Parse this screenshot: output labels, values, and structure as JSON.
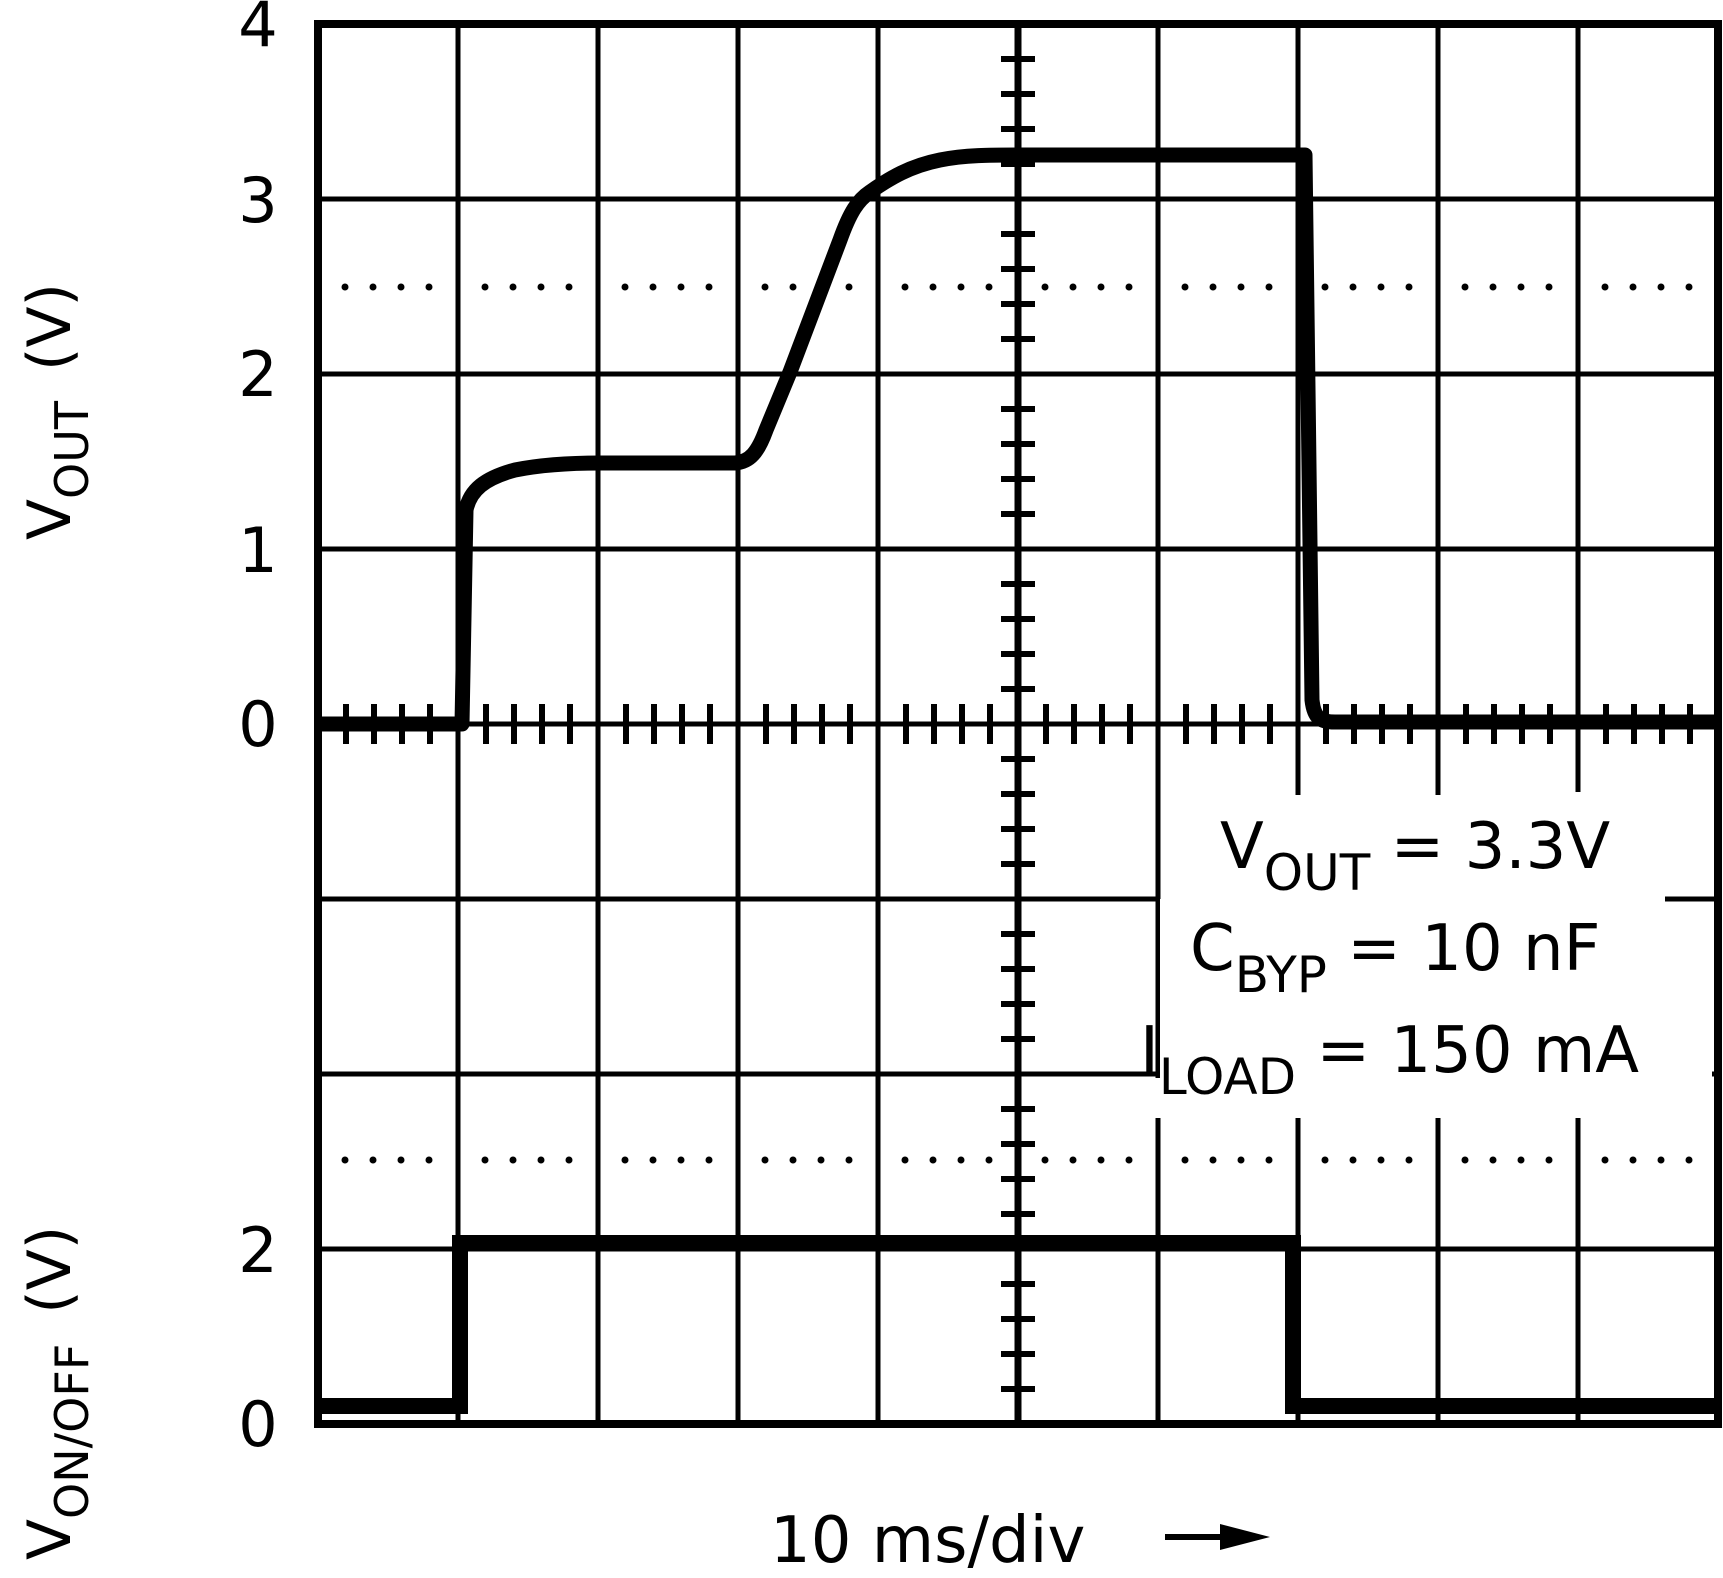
{
  "chart_data": {
    "type": "line",
    "title": "",
    "xlabel": "10 ms/div →",
    "x_units": "ms",
    "x_divisions": 10,
    "x_ms_per_div": 10,
    "grid": true,
    "legend": null,
    "panels": [
      {
        "name": "VOUT",
        "ylabel_main": "V",
        "ylabel_sub": "OUT",
        "ylabel_unit": "(V)",
        "ylim": [
          0,
          4
        ],
        "yticks": [
          "4",
          "3",
          "2",
          "1",
          "0"
        ],
        "series": [
          {
            "name": "VOUT",
            "x_ms": [
              0,
              10.5,
              10.6,
              11,
              12,
              14,
              20,
              27.5,
              29,
              31,
              33,
              34.5,
              36,
              39,
              43,
              50,
              60,
              70.1,
              70.5,
              70.9,
              71.5,
              80,
              100
            ],
            "values": [
              0,
              0,
              1.2,
              1.35,
              1.45,
              1.5,
              1.5,
              1.5,
              1.6,
              2.1,
              2.65,
              3.0,
              3.15,
              3.27,
              3.3,
              3.3,
              3.3,
              3.3,
              2.0,
              0.5,
              0,
              0,
              0
            ]
          }
        ]
      },
      {
        "name": "VON/OFF",
        "ylabel_main": "V",
        "ylabel_sub": "ON/OFF",
        "ylabel_unit": "(V)",
        "ylim": [
          0,
          2
        ],
        "yticks": [
          "2",
          "0"
        ],
        "series": [
          {
            "name": "VON/OFF",
            "x_ms": [
              0,
              10.2,
              10.2,
              69.8,
              69.8,
              100
            ],
            "values": [
              0.1,
              0.1,
              2.0,
              2.0,
              0.1,
              0.1
            ]
          }
        ]
      }
    ],
    "annotations": [
      {
        "main": "V",
        "sub": "OUT",
        "rest": " = 3.3V"
      },
      {
        "main": "C",
        "sub": "BYP",
        "rest": " = 10 nF"
      },
      {
        "main": "I",
        "sub": "LOAD",
        "rest": " = 150 mA"
      }
    ]
  },
  "labels": {
    "vout_tick_4": "4",
    "vout_tick_3": "3",
    "vout_tick_2": "2",
    "vout_tick_1": "1",
    "vout_tick_0": "0",
    "von_tick_2": "2",
    "von_tick_0": "0",
    "vout_axis_main": "V",
    "vout_axis_sub": "OUT",
    "vout_axis_unit": "(V)",
    "von_axis_main": "V",
    "von_axis_sub": "ON/OFF",
    "von_axis_unit": "(V)",
    "annot_1_main": "V",
    "annot_1_sub": "OUT",
    "annot_1_rest": " = 3.3V",
    "annot_2_main": "C",
    "annot_2_sub": "BYP",
    "annot_2_rest": " = 10 nF",
    "annot_3_main": "I",
    "annot_3_sub": "LOAD",
    "annot_3_rest": " = 150 mA",
    "x_label": "10 ms/div",
    "x_arrow": "→"
  },
  "style": {
    "trace_color": "#000000",
    "grid_color": "#000000",
    "background": "#ffffff"
  }
}
